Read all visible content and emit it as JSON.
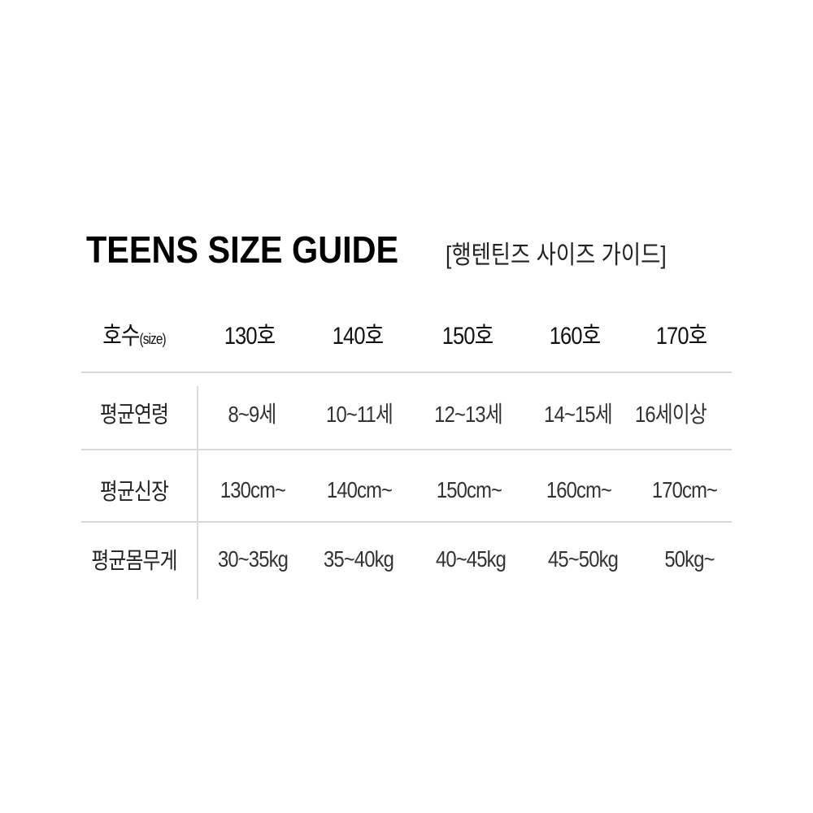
{
  "title": "TEENS SIZE GUIDE",
  "subtitle": "[행텐틴즈 사이즈 가이드]",
  "table": {
    "header": {
      "label": "호수",
      "label_suffix": "(size)",
      "sizes": [
        "130호",
        "140호",
        "150호",
        "160호",
        "170호"
      ]
    },
    "rows": [
      {
        "label": "평균연령",
        "values": [
          "8~9세",
          "10~11세",
          "12~13세",
          "14~15세",
          "16세이상"
        ]
      },
      {
        "label": "평균신장",
        "values": [
          "130cm~",
          "140cm~",
          "150cm~",
          "160cm~",
          "170cm~"
        ]
      },
      {
        "label": "평균몸무게",
        "values": [
          "30~35kg",
          "35~40kg",
          "40~45kg",
          "45~50kg",
          "50kg~"
        ]
      }
    ]
  }
}
